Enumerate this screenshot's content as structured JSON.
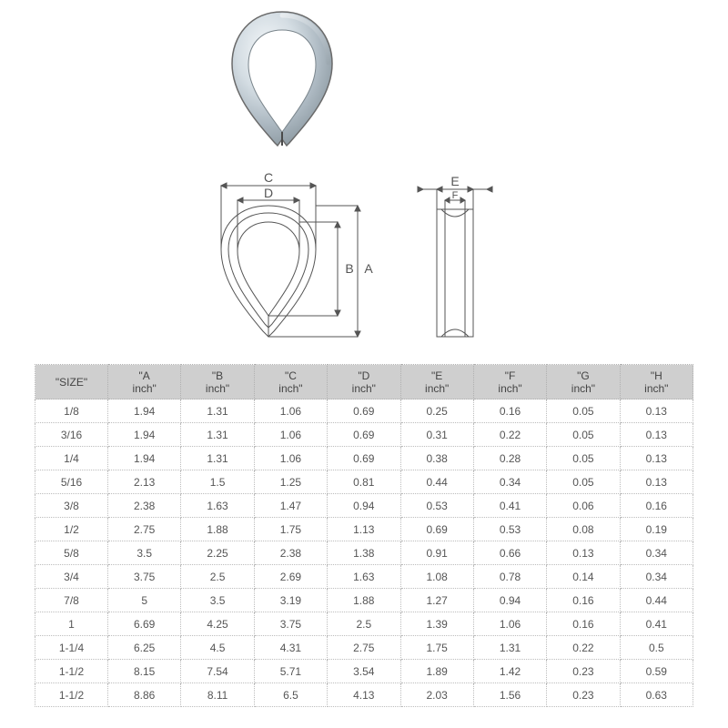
{
  "product_photo": {
    "type": "wire-rope-thimble",
    "outer_stroke": "#6a6a6a",
    "fill_light": "#e8ecef",
    "fill_mid": "#b8c4cc",
    "fill_shadow": "#8a979f",
    "highlight": "#f5f8fa"
  },
  "diagram": {
    "stroke": "#555555",
    "stroke_width": 1,
    "label_font": 14,
    "labels": {
      "A": "A",
      "B": "B",
      "C": "C",
      "D": "D",
      "E": "E",
      "F": "F"
    }
  },
  "table": {
    "header_bg": "#cfcfcf",
    "header_color": "#444444",
    "cell_color": "#555555",
    "border_color": "#bcbcbc",
    "font_size": 12,
    "columns": [
      "\"SIZE\"",
      "\"A inch\"",
      "\"B inch\"",
      "\"C inch\"",
      "\"D inch\"",
      "\"E inch\"",
      "\"F inch\"",
      "\"G inch\"",
      "\"H inch\""
    ],
    "rows": [
      [
        "1/8",
        "1.94",
        "1.31",
        "1.06",
        "0.69",
        "0.25",
        "0.16",
        "0.05",
        "0.13"
      ],
      [
        "3/16",
        "1.94",
        "1.31",
        "1.06",
        "0.69",
        "0.31",
        "0.22",
        "0.05",
        "0.13"
      ],
      [
        "1/4",
        "1.94",
        "1.31",
        "1.06",
        "0.69",
        "0.38",
        "0.28",
        "0.05",
        "0.13"
      ],
      [
        "5/16",
        "2.13",
        "1.5",
        "1.25",
        "0.81",
        "0.44",
        "0.34",
        "0.05",
        "0.13"
      ],
      [
        "3/8",
        "2.38",
        "1.63",
        "1.47",
        "0.94",
        "0.53",
        "0.41",
        "0.06",
        "0.16"
      ],
      [
        "1/2",
        "2.75",
        "1.88",
        "1.75",
        "1.13",
        "0.69",
        "0.53",
        "0.08",
        "0.19"
      ],
      [
        "5/8",
        "3.5",
        "2.25",
        "2.38",
        "1.38",
        "0.91",
        "0.66",
        "0.13",
        "0.34"
      ],
      [
        "3/4",
        "3.75",
        "2.5",
        "2.69",
        "1.63",
        "1.08",
        "0.78",
        "0.14",
        "0.34"
      ],
      [
        "7/8",
        "5",
        "3.5",
        "3.19",
        "1.88",
        "1.27",
        "0.94",
        "0.16",
        "0.44"
      ],
      [
        "1",
        "6.69",
        "4.25",
        "3.75",
        "2.5",
        "1.39",
        "1.06",
        "0.16",
        "0.41"
      ],
      [
        "1-1/4",
        "6.25",
        "4.5",
        "4.31",
        "2.75",
        "1.75",
        "1.31",
        "0.22",
        "0.5"
      ],
      [
        "1-1/2",
        "8.15",
        "7.54",
        "5.71",
        "3.54",
        "1.89",
        "1.42",
        "0.23",
        "0.59"
      ],
      [
        "1-1/2",
        "8.86",
        "8.11",
        "6.5",
        "4.13",
        "2.03",
        "1.56",
        "0.23",
        "0.63"
      ]
    ]
  }
}
